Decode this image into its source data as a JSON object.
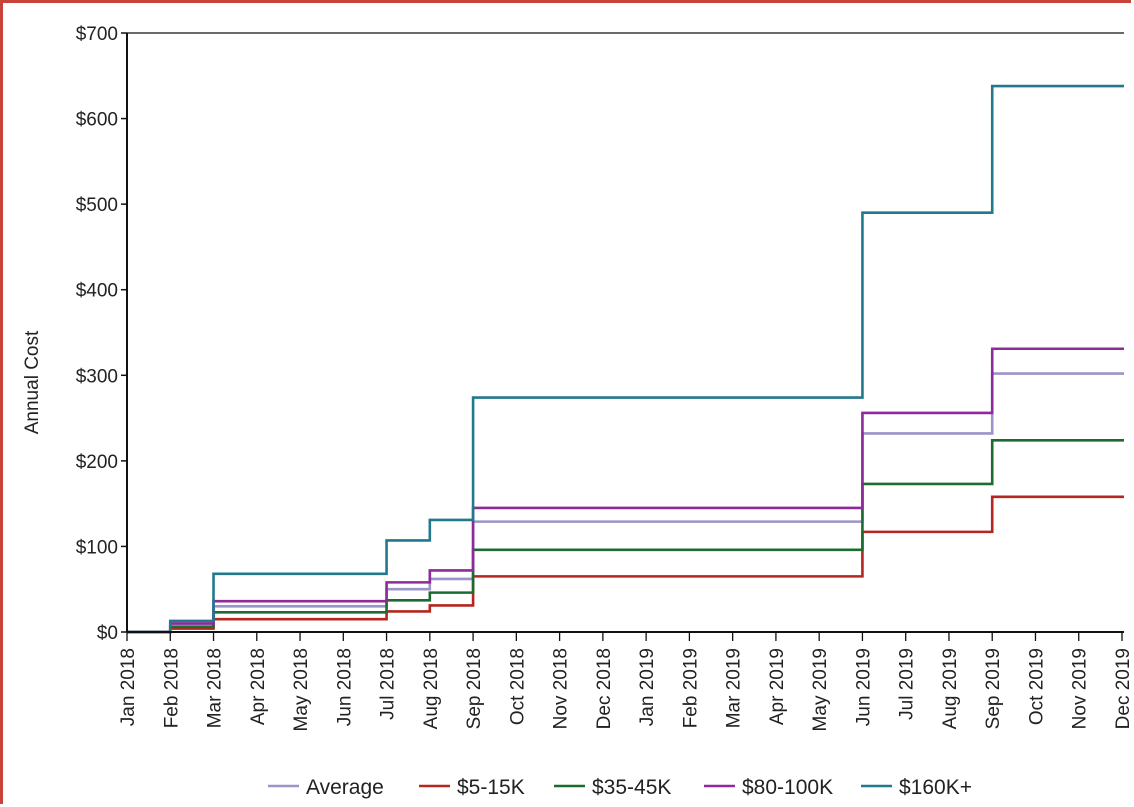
{
  "chart_data": {
    "type": "line",
    "step": true,
    "ylabel": "Annual Cost",
    "xlabel": "",
    "ylim": [
      0,
      700
    ],
    "y_ticks": [
      {
        "value": 0,
        "label": "$0"
      },
      {
        "value": 100,
        "label": "$100"
      },
      {
        "value": 200,
        "label": "$200"
      },
      {
        "value": 300,
        "label": "$300"
      },
      {
        "value": 400,
        "label": "$400"
      },
      {
        "value": 500,
        "label": "$500"
      },
      {
        "value": 600,
        "label": "$600"
      },
      {
        "value": 700,
        "label": "$700"
      }
    ],
    "categories": [
      "Jan 2018",
      "Feb 2018",
      "Mar 2018",
      "Apr 2018",
      "May 2018",
      "Jun 2018",
      "Jul 2018",
      "Aug 2018",
      "Sep 2018",
      "Oct 2018",
      "Nov 2018",
      "Dec 2018",
      "Jan 2019",
      "Feb 2019",
      "Mar 2019",
      "Apr 2019",
      "May 2019",
      "Jun 2019",
      "Jul 2019",
      "Aug 2019",
      "Sep 2019",
      "Oct 2019",
      "Nov 2019",
      "Dec 2019"
    ],
    "grid": false,
    "legend_position": "bottom",
    "series": [
      {
        "name": "Average",
        "color": "#9b94c8",
        "values": [
          0,
          9,
          30,
          30,
          30,
          30,
          50,
          62,
          129,
          129,
          129,
          129,
          129,
          129,
          129,
          129,
          129,
          232,
          232,
          232,
          302,
          302,
          302,
          302
        ]
      },
      {
        "name": "$5-15K",
        "color": "#b5261e",
        "values": [
          0,
          4,
          15,
          15,
          15,
          15,
          24,
          31,
          65,
          65,
          65,
          65,
          65,
          65,
          65,
          65,
          65,
          117,
          117,
          117,
          158,
          158,
          158,
          158
        ]
      },
      {
        "name": "$35-45K",
        "color": "#1e6b30",
        "values": [
          0,
          6,
          23,
          23,
          23,
          23,
          37,
          46,
          96,
          96,
          96,
          96,
          96,
          96,
          96,
          96,
          96,
          173,
          173,
          173,
          224,
          224,
          224,
          224
        ]
      },
      {
        "name": "$80-100K",
        "color": "#8f2a9a",
        "values": [
          0,
          10,
          36,
          36,
          36,
          36,
          58,
          72,
          145,
          145,
          145,
          145,
          145,
          145,
          145,
          145,
          145,
          256,
          256,
          256,
          331,
          331,
          331,
          331
        ]
      },
      {
        "name": "$160K+",
        "color": "#22788c",
        "values": [
          0,
          13,
          68,
          68,
          68,
          68,
          107,
          131,
          274,
          274,
          274,
          274,
          274,
          274,
          274,
          274,
          274,
          490,
          490,
          490,
          638,
          638,
          638,
          638
        ]
      }
    ]
  }
}
